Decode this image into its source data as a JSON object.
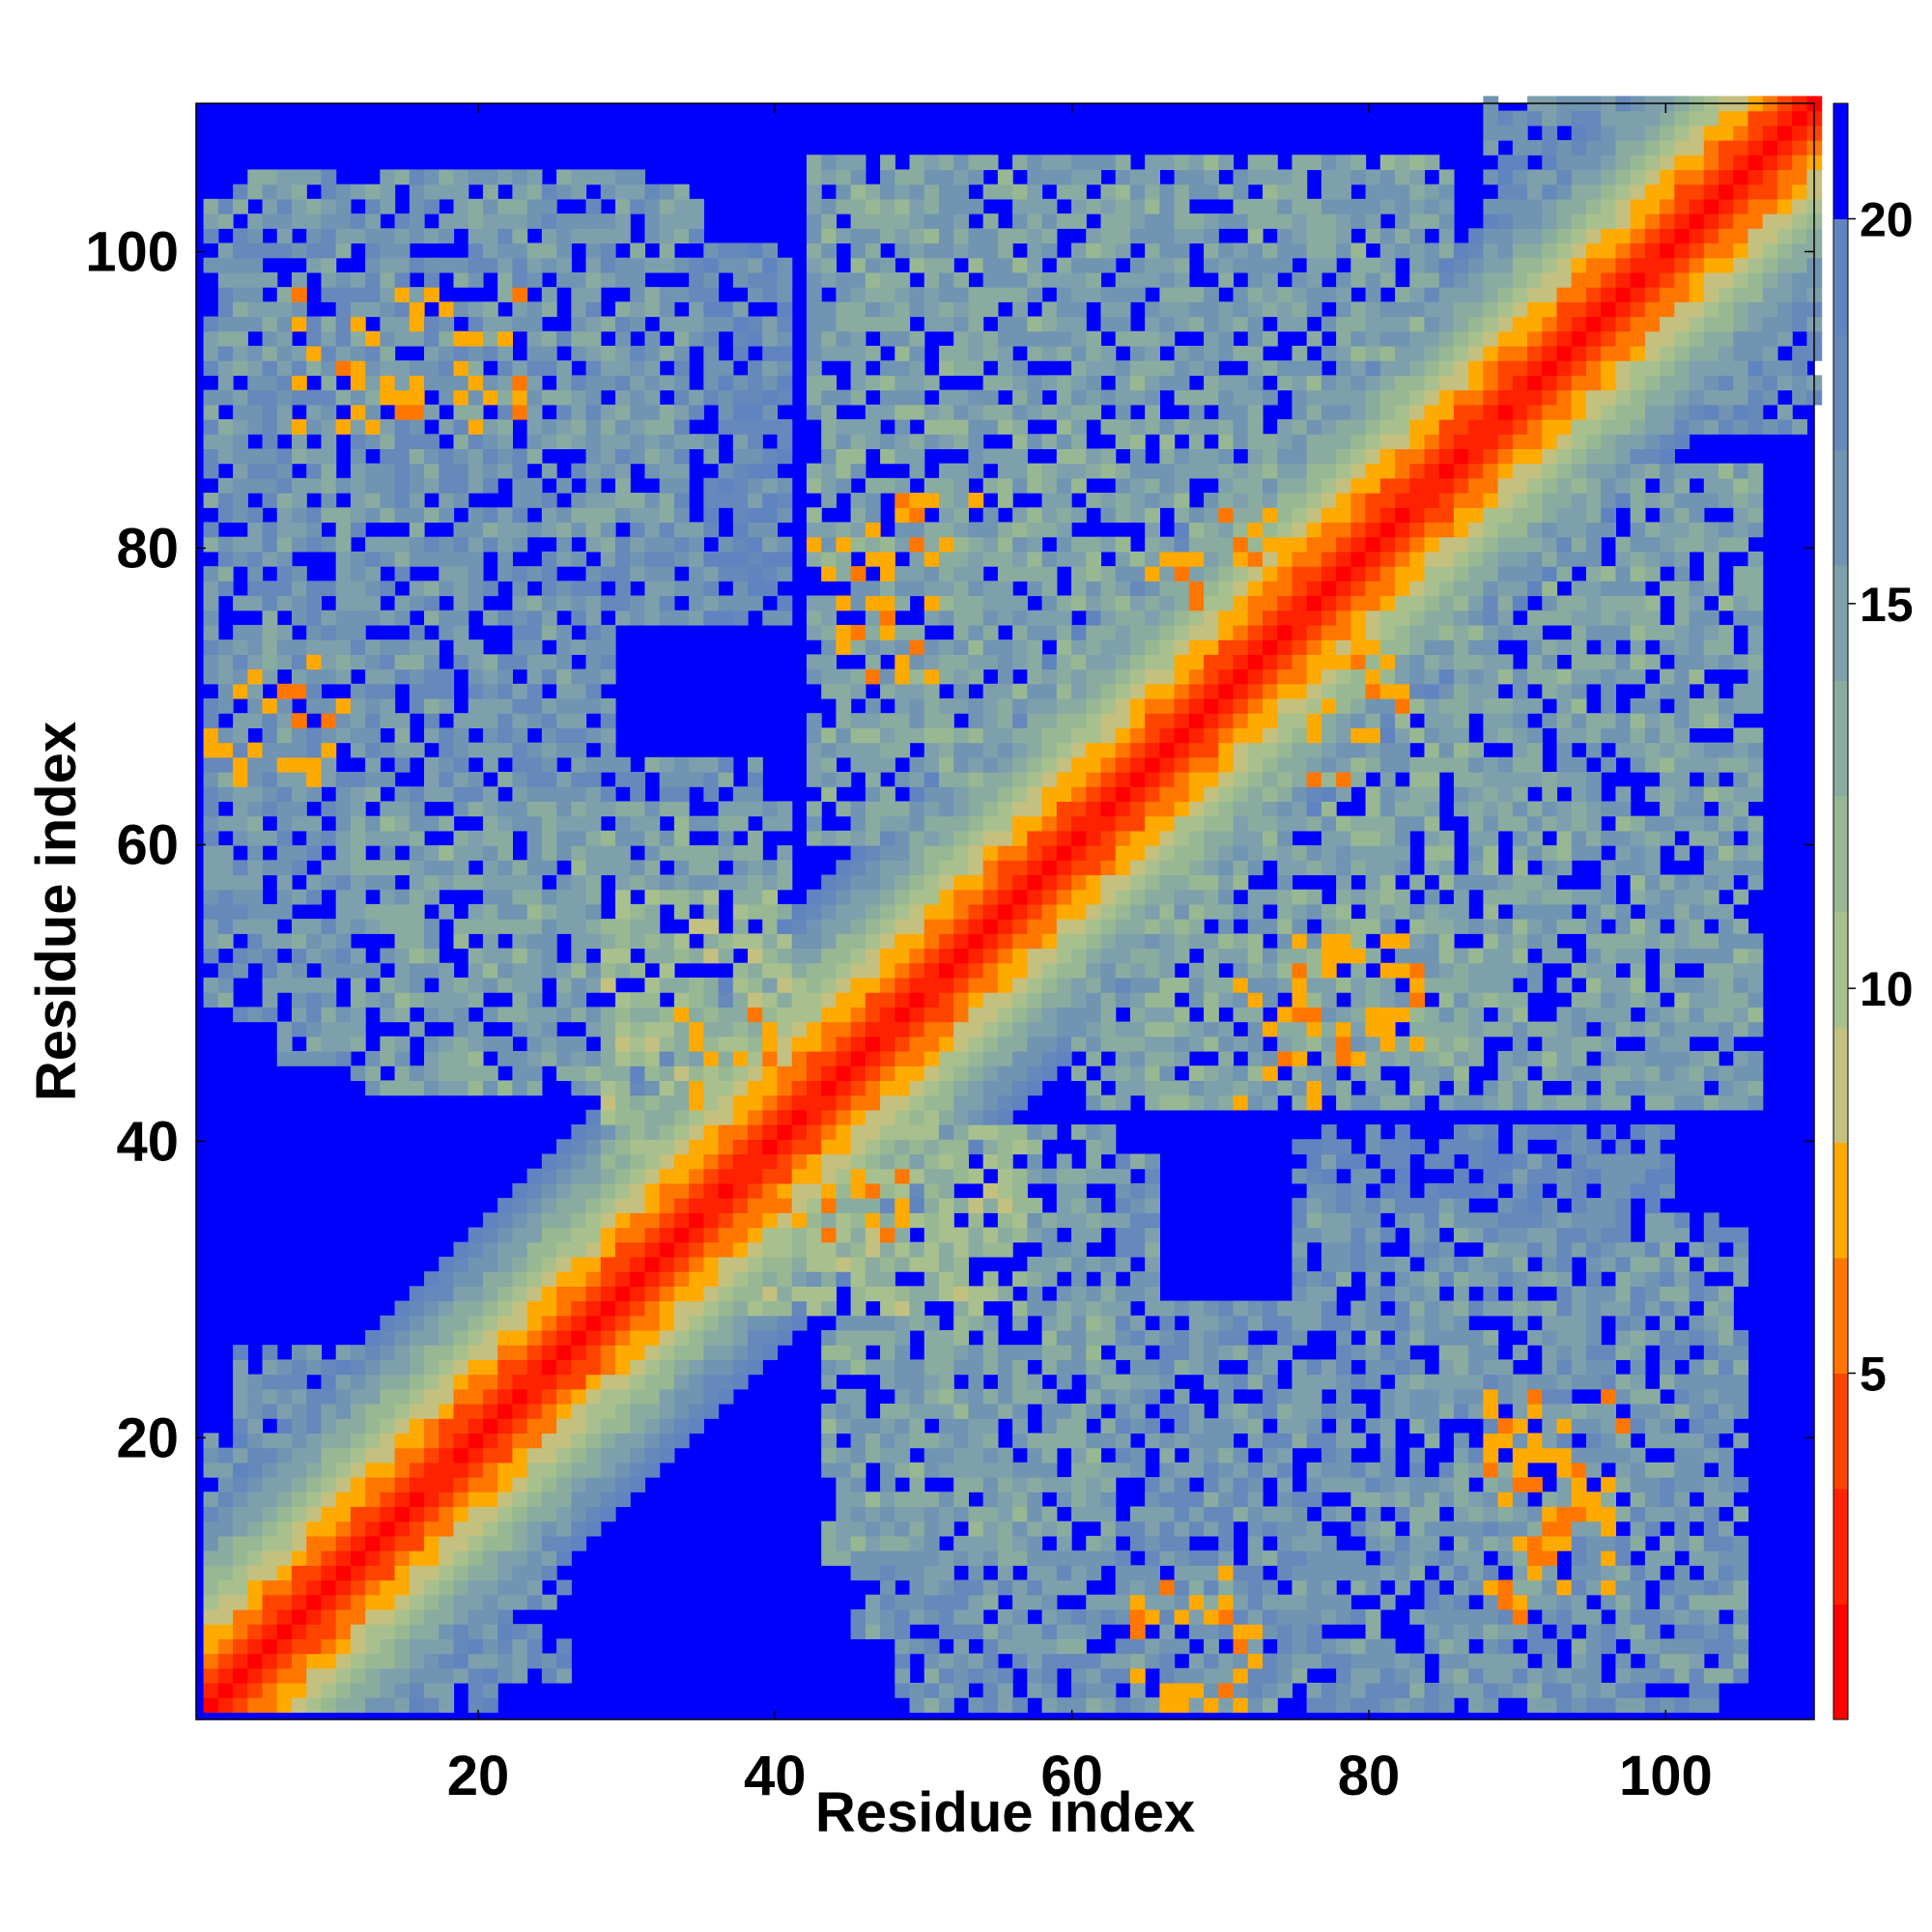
{
  "chart_data": {
    "type": "heatmap",
    "title": "",
    "xlabel": "Residue index",
    "ylabel": "Residue index",
    "n_residues": 110,
    "xlim": [
      1,
      110
    ],
    "ylim": [
      1,
      110
    ],
    "x_ticks": [
      20,
      40,
      60,
      80,
      100
    ],
    "y_ticks": [
      20,
      40,
      60,
      80,
      100
    ],
    "colorbar": {
      "vmin": 0.5,
      "vmax": 21.5,
      "ticks": [
        5,
        10,
        15,
        20
      ],
      "above_max_color": "#0000ff"
    },
    "colormap": [
      {
        "max": 2,
        "color": "#ff0000"
      },
      {
        "max": 3.5,
        "color": "#ff2200"
      },
      {
        "max": 5,
        "color": "#ff4400"
      },
      {
        "max": 6.5,
        "color": "#ff7700"
      },
      {
        "max": 8,
        "color": "#ffaa00"
      },
      {
        "max": 9.5,
        "color": "#c4c080"
      },
      {
        "max": 11,
        "color": "#a8c08e"
      },
      {
        "max": 12.5,
        "color": "#98b893"
      },
      {
        "max": 14,
        "color": "#8aaca0"
      },
      {
        "max": 15.5,
        "color": "#7ea0ac"
      },
      {
        "max": 17,
        "color": "#7094b2"
      },
      {
        "max": 18.5,
        "color": "#6688bb"
      },
      {
        "max": 20,
        "color": "#5f84c0"
      },
      {
        "max": 21.5,
        "color": "#0000ff"
      }
    ],
    "structure": {
      "diagonal_band_width": 14,
      "contact_regions": [
        {
          "x": [
            3,
            33
          ],
          "y": [
            80,
            105
          ],
          "distance": 15
        },
        {
          "x": [
            1,
            28
          ],
          "y": [
            48,
            74
          ],
          "distance": 15.5
        },
        {
          "x": [
            11,
            40
          ],
          "y": [
            43,
            62
          ],
          "distance": 14
        },
        {
          "x": [
            28,
            44
          ],
          "y": [
            38,
            50
          ],
          "distance": 11
        },
        {
          "x": [
            40,
            56
          ],
          "y": [
            28,
            40
          ],
          "distance": 11
        },
        {
          "x": [
            45,
            65
          ],
          "y": [
            6,
            38
          ],
          "distance": 15.5
        },
        {
          "x": [
            48,
            72
          ],
          "y": [
            1,
            14
          ],
          "distance": 16
        },
        {
          "x": [
            42,
            85
          ],
          "y": [
            60,
            106
          ],
          "distance": 14
        },
        {
          "x": [
            63,
            88
          ],
          "y": [
            44,
            68
          ],
          "distance": 13.5
        },
        {
          "x": [
            75,
            103
          ],
          "y": [
            1,
            34
          ],
          "distance": 15.5
        },
        {
          "x": [
            75,
            100
          ],
          "y": [
            28,
            40
          ],
          "distance": 17
        },
        {
          "x": [
            87,
            104
          ],
          "y": [
            46,
            57
          ],
          "distance": 17.5
        },
        {
          "x": [
            3,
            20
          ],
          "y": [
            1,
            25
          ],
          "distance": 16
        },
        {
          "x": [
            88,
            110
          ],
          "y": [
            95,
            110
          ],
          "distance": 16
        }
      ],
      "hotspots": [
        {
          "x": [
            12,
            22
          ],
          "y": [
            88,
            96
          ]
        },
        {
          "x": [
            2,
            10
          ],
          "y": [
            66,
            72
          ]
        },
        {
          "x": [
            42,
            50
          ],
          "y": [
            71,
            80
          ]
        },
        {
          "x": [
            88,
            97
          ],
          "y": [
            7,
            22
          ]
        },
        {
          "x": [
            64,
            71
          ],
          "y": [
            1,
            8
          ]
        },
        {
          "x": [
            74,
            83
          ],
          "y": [
            46,
            53
          ]
        },
        {
          "x": [
            33,
            40
          ],
          "y": [
            38,
            46
          ]
        },
        {
          "x": [
            40,
            49
          ],
          "y": [
            33,
            39
          ]
        },
        {
          "x": [
            67,
            74
          ],
          "y": [
            76,
            82
          ]
        },
        {
          "x": [
            76,
            80
          ],
          "y": [
            64,
            70
          ]
        }
      ]
    }
  }
}
